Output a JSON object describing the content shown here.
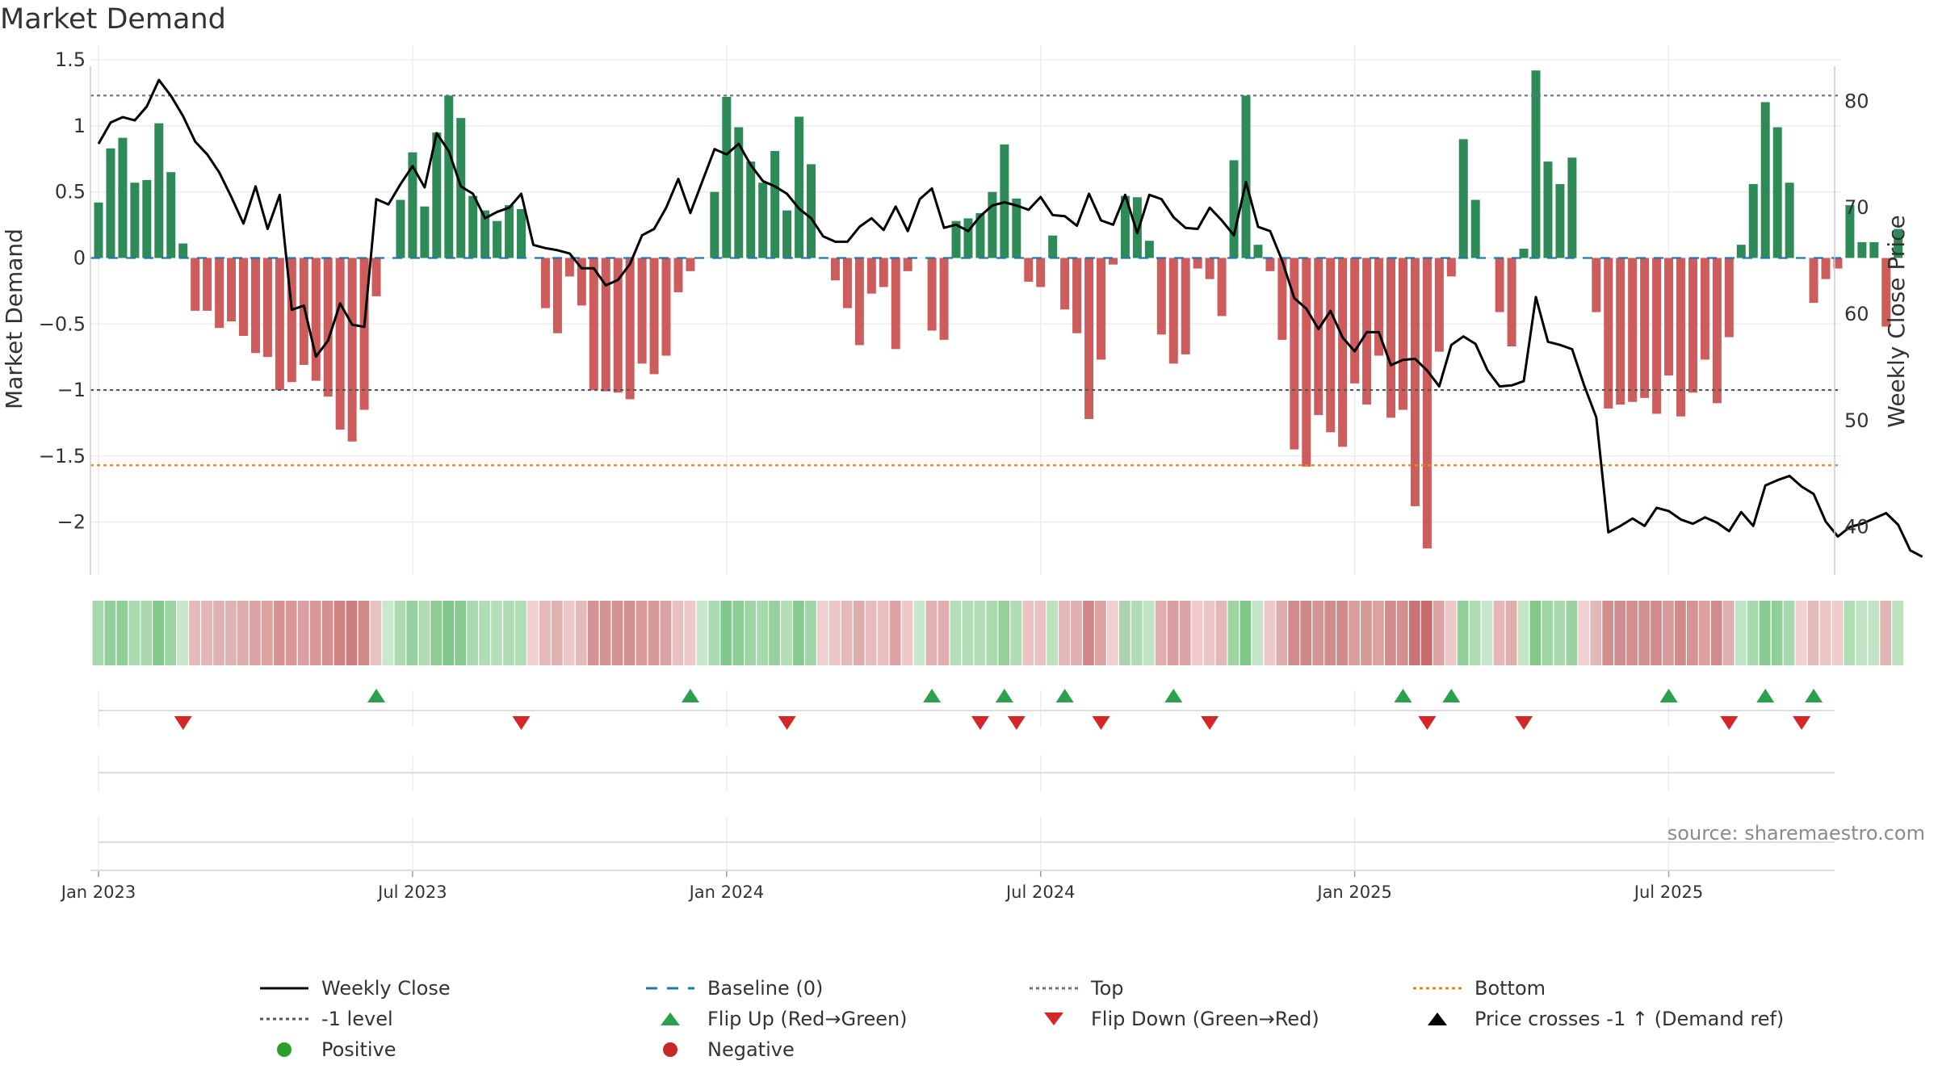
{
  "chart_data": {
    "type": "bar",
    "title": "Market Demand",
    "ylabel": "Market Demand",
    "y2label": "Weekly Close Price",
    "ylim": [
      -2.4,
      1.55
    ],
    "y2lim": [
      35.5,
      84.5
    ],
    "yticks": [
      1.5,
      1,
      0.5,
      0,
      -0.5,
      -1,
      -1.5,
      -2
    ],
    "ytick_labels": [
      "1.5",
      "1",
      "0.5",
      "0",
      "−0.5",
      "−1",
      "−1.5",
      "−2"
    ],
    "y2ticks": [
      80,
      70,
      60,
      50,
      40
    ],
    "y2tick_labels": [
      "80",
      "70",
      "60",
      "50",
      "40"
    ],
    "xticks": [
      {
        "label": "Jan 2023",
        "week": 1
      },
      {
        "label": "Jul 2023",
        "week": 27
      },
      {
        "label": "Jan 2024",
        "week": 53
      },
      {
        "label": "Jul 2024",
        "week": 79
      },
      {
        "label": "Jan 2025",
        "week": 105
      },
      {
        "label": "Jul 2025",
        "week": 131
      }
    ],
    "reference_lines": {
      "top": 1.23,
      "minus_one": -1,
      "bottom": -1.57,
      "baseline": 0
    },
    "series": [
      {
        "name": "Market Demand",
        "values": [
          0.42,
          0.83,
          0.91,
          0.57,
          0.59,
          1.02,
          0.65,
          0.11,
          -0.4,
          -0.4,
          -0.53,
          -0.48,
          -0.59,
          -0.72,
          -0.75,
          -1,
          -0.94,
          -0.81,
          -0.93,
          -1.05,
          -1.3,
          -1.39,
          -1.15,
          -0.29,
          0,
          0.44,
          0.8,
          0.39,
          0.95,
          1.23,
          1.06,
          0.47,
          0.36,
          0.28,
          0.4,
          0.37,
          0,
          -0.38,
          -0.57,
          -0.14,
          -0.36,
          -1,
          -1.01,
          -1.02,
          -1.07,
          -0.8,
          -0.88,
          -0.74,
          -0.26,
          -0.1,
          0,
          0.5,
          1.22,
          0.99,
          0.73,
          0.57,
          0.81,
          0.36,
          1.07,
          0.71,
          0,
          -0.17,
          -0.38,
          -0.66,
          -0.27,
          -0.22,
          -0.69,
          -0.1,
          0,
          -0.55,
          -0.62,
          0.28,
          0.3,
          0.34,
          0.5,
          0.86,
          0.45,
          -0.18,
          -0.22,
          0.17,
          -0.39,
          -0.57,
          -1.22,
          -0.77,
          -0.05,
          0.47,
          0.46,
          0.13,
          -0.58,
          -0.8,
          -0.73,
          -0.08,
          -0.16,
          -0.44,
          0.74,
          1.23,
          0.1,
          -0.1,
          -0.62,
          -1.45,
          -1.58,
          -1.19,
          -1.32,
          -1.43,
          -0.95,
          -1.11,
          -0.74,
          -1.21,
          -1.15,
          -1.88,
          -2.2,
          -0.71,
          -0.14,
          0.9,
          0.44,
          0,
          -0.41,
          -0.67,
          0.07,
          1.42,
          0.73,
          0.56,
          0.76,
          0,
          -0.41,
          -1.14,
          -1.11,
          -1.09,
          -1.06,
          -1.18,
          -0.89,
          -1.2,
          -1.02,
          -0.77,
          -1.1,
          -0.6,
          0.1,
          0.56,
          1.18,
          0.99,
          0.57,
          0,
          -0.34,
          -0.16,
          -0.08,
          0.4,
          0.12,
          0.12,
          -0.52,
          0.22
        ]
      },
      {
        "name": "Weekly Close",
        "values": [
          76,
          78,
          78.5,
          78.2,
          79.5,
          82,
          80.5,
          78.6,
          76.2,
          75,
          73.3,
          71,
          68.5,
          72,
          68,
          71.2,
          60.4,
          60.8,
          56,
          57.5,
          61,
          59,
          58.8,
          70.8,
          70.3,
          72.2,
          73.9,
          71.9,
          77,
          75.3,
          72,
          71.3,
          69,
          69.6,
          70,
          71.3,
          66.5,
          66.2,
          66,
          65.7,
          64.3,
          64.3,
          62.7,
          63.2,
          64.7,
          67.4,
          68,
          70,
          72.7,
          69.5,
          72.5,
          75.5,
          75,
          76,
          74,
          72.5,
          72,
          71.3,
          69.9,
          69,
          67.3,
          66.8,
          66.8,
          68.2,
          69,
          67.9,
          70.1,
          67.8,
          70.8,
          71.8,
          68.1,
          68.4,
          67.8,
          69.2,
          70.2,
          70.5,
          70.2,
          69.8,
          71,
          69.3,
          69.2,
          68.3,
          71.3,
          68.8,
          68.4,
          71.2,
          67.6,
          71.2,
          70.8,
          69.1,
          68.1,
          68,
          70,
          68.8,
          67.4,
          72.4,
          68.2,
          67.8,
          65,
          61.5,
          60.5,
          58.6,
          60.3,
          57.8,
          56.5,
          58.3,
          58.3,
          55.2,
          55.7,
          55.8,
          54.7,
          53.2,
          57.1,
          57.9,
          57.2,
          54.7,
          53.2,
          53.3,
          53.7,
          61.6,
          57.4,
          57.1,
          56.7,
          53.3,
          50.3,
          39.5,
          40.1,
          40.8,
          40.1,
          41.8,
          41.5,
          40.7,
          40.3,
          40.9,
          40.4,
          39.6,
          41.4,
          40.1,
          43.9,
          44.4,
          44.8,
          43.8,
          43.1,
          40.5,
          39.1,
          40,
          40.3,
          40.8,
          41.3,
          40.2,
          37.8,
          37.2
        ]
      }
    ],
    "flip_up_weeks": [
      24,
      50,
      70,
      76,
      81,
      90,
      109,
      113,
      131,
      139,
      143
    ],
    "flip_down_weeks": [
      8,
      36,
      58,
      74,
      77,
      84,
      93,
      111,
      119,
      136,
      142
    ],
    "strip_colors": [
      "#a6d8ab",
      "#93cf9a",
      "#8fce97",
      "#a9d9ae",
      "#a8d9ad",
      "#83c98b",
      "#9dd4a3",
      "#c6e6c8",
      "#e5b9b9",
      "#e3b6b6",
      "#e0afaf",
      "#e1b2b2",
      "#dfacac",
      "#dca4a4",
      "#dca2a2",
      "#d69393",
      "#d79797",
      "#da9e9e",
      "#d79797",
      "#d48f8f",
      "#cf8383",
      "#cd7f7f",
      "#d18a8a",
      "#e9c3c3",
      "#c8e8cb",
      "#acdbb0",
      "#94d09b",
      "#afdcb3",
      "#8dcd95",
      "#7fc788",
      "#88cb90",
      "#acdab0",
      "#b1ddb5",
      "#b5dfb9",
      "#afdcb3",
      "#b0ddb4",
      "#f0d0d0",
      "#e5b9b9",
      "#e1b1b1",
      "#edc8c8",
      "#e5b9b9",
      "#d69393",
      "#d69393",
      "#d59292",
      "#d48f8f",
      "#d99c9c",
      "#d79898",
      "#dba2a2",
      "#e9c0c0",
      "#eec8c8",
      "#c8e8cb",
      "#aadaaf",
      "#80c889",
      "#8ccd94",
      "#9fd5a5",
      "#a8d9ad",
      "#96d19c",
      "#b2ddb6",
      "#88cb90",
      "#a0d5a6",
      "#f0d0d0",
      "#ecc6c6",
      "#e5b9b9",
      "#dfacac",
      "#e7bcbc",
      "#e9c0c0",
      "#dca4a4",
      "#eec8c8",
      "#c8e8cb",
      "#e1b1b1",
      "#dfadad",
      "#b4deb8",
      "#b4deb8",
      "#b2ddb6",
      "#aadaaf",
      "#96d19c",
      "#afdcb3",
      "#ebc3c3",
      "#eac1c1",
      "#bce2bf",
      "#e4b7b7",
      "#e0afaf",
      "#d08686",
      "#dca3a3",
      "#f0d0d0",
      "#add2b1",
      "#afdcb3",
      "#c0e3c3",
      "#e0aeae",
      "#d99f9f",
      "#dba3a3",
      "#efcbcb",
      "#ecc5c5",
      "#e4b7b7",
      "#9cd4a2",
      "#80c889",
      "#c4e5c7",
      "#eec8c8",
      "#dfacac",
      "#d28a8a",
      "#d08787",
      "#d69494",
      "#d38c8c",
      "#d18989",
      "#da9e9e",
      "#d79898",
      "#dca2a2",
      "#d38c8c",
      "#d48f8f",
      "#c97575",
      "#c46b6b",
      "#dca3a3",
      "#edc8c8",
      "#93cf9a",
      "#aedcb2",
      "#c8e8cb",
      "#e4b8b8",
      "#e0adad",
      "#c3e5c6",
      "#81c889",
      "#9fd5a5",
      "#a8d9ad",
      "#9ad3a0",
      "#f0d0d0",
      "#e4b8b8",
      "#d28d8d",
      "#d28e8e",
      "#d38f8f",
      "#d39090",
      "#d18b8b",
      "#d89a9a",
      "#d18a8a",
      "#d69393",
      "#dba1a1",
      "#d38c8c",
      "#e0aeae",
      "#c0e3c3",
      "#a8d9ad",
      "#88cb90",
      "#8fce97",
      "#a9d9ae",
      "#f0d0d0",
      "#e6bbbb",
      "#ecc5c5",
      "#efcbcb",
      "#b0ddb4",
      "#c0e3c3",
      "#c0e3c3",
      "#e2b4b4",
      "#bce2bf"
    ]
  },
  "legend": [
    {
      "label": "Weekly Close",
      "symbol": "line-solid",
      "color": "#000000"
    },
    {
      "label": "Baseline (0)",
      "symbol": "line-dashed",
      "color": "#1f77b4"
    },
    {
      "label": "Top",
      "symbol": "line-dotted",
      "color": "#6b6b9e"
    },
    {
      "label": "Bottom",
      "symbol": "line-dotted",
      "color": "#e08a1e"
    },
    {
      "label": "-1 level",
      "symbol": "line-dotted",
      "color": "#555555"
    },
    {
      "label": "Flip Up (Red→Green)",
      "symbol": "triangle-up",
      "color": "#2ca04c"
    },
    {
      "label": "Flip Down (Green→Red)",
      "symbol": "triangle-down",
      "color": "#d62728"
    },
    {
      "label": "Price crosses -1 ↑ (Demand ref)",
      "symbol": "triangle-up",
      "color": "#000000"
    },
    {
      "label": "Positive",
      "symbol": "circle",
      "color": "#2ca02c"
    },
    {
      "label": "Negative",
      "symbol": "circle",
      "color": "#c62828"
    }
  ],
  "source": "source: sharemaestro.com",
  "colors": {
    "positive": "#2e8b57",
    "negative": "#cd5c5c",
    "flip_up": "#2ca04c",
    "flip_down": "#d62728",
    "price": "#000000"
  }
}
